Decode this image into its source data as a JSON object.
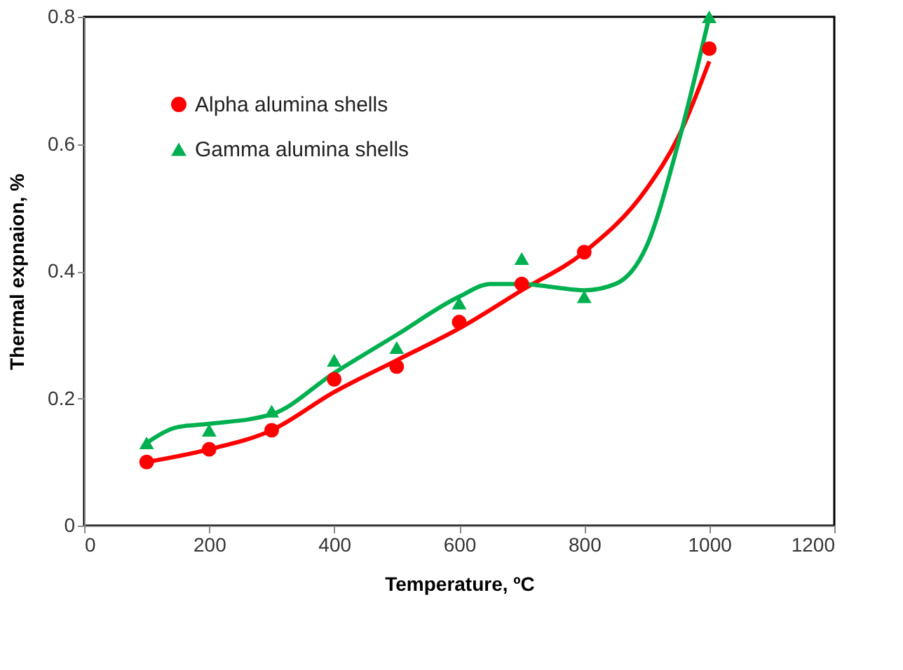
{
  "chart_data": {
    "type": "scatter",
    "xlabel": "Temperature, ºC",
    "ylabel": "Thermal expnaion, %",
    "xlim": [
      0,
      1200
    ],
    "xticks": [
      0,
      200,
      400,
      600,
      800,
      1000,
      1200
    ],
    "ylim": [
      0,
      0.8
    ],
    "yticks": [
      {
        "value": 0,
        "label": "0"
      },
      0.2,
      0.4,
      0.6,
      0.8
    ],
    "grid": false,
    "legend": "top left",
    "series": [
      {
        "name": "Alpha alumina shells",
        "marker": "circle",
        "color": "#ff0000",
        "x": [
          100,
          200,
          300,
          400,
          500,
          600,
          700,
          800,
          1000
        ],
        "values": [
          0.1,
          0.12,
          0.15,
          0.23,
          0.25,
          0.32,
          0.38,
          0.43,
          0.75
        ]
      },
      {
        "name": "Gamma alumina shells",
        "marker": "triangle",
        "color": "#00b050",
        "x": [
          100,
          200,
          300,
          400,
          500,
          600,
          700,
          800,
          1000
        ],
        "values": [
          0.13,
          0.15,
          0.18,
          0.26,
          0.28,
          0.35,
          0.42,
          0.36,
          0.8
        ]
      },
      {
        "type": "line",
        "line_style": "solid",
        "color": "#ff0000",
        "x": [
          100,
          200,
          300,
          400,
          500,
          600,
          700,
          800,
          900,
          950,
          1000
        ],
        "values": [
          0.1,
          0.12,
          0.15,
          0.21,
          0.26,
          0.31,
          0.37,
          0.43,
          0.53,
          0.61,
          0.73
        ]
      },
      {
        "type": "line",
        "line_style": "solid",
        "color": "#00b050",
        "x": [
          100,
          150,
          200,
          300,
          400,
          500,
          600,
          650,
          700,
          750,
          800,
          850,
          900,
          950,
          1000
        ],
        "values": [
          0.13,
          0.155,
          0.16,
          0.175,
          0.24,
          0.3,
          0.36,
          0.38,
          0.38,
          0.375,
          0.37,
          0.38,
          0.44,
          0.6,
          0.8
        ]
      }
    ]
  }
}
